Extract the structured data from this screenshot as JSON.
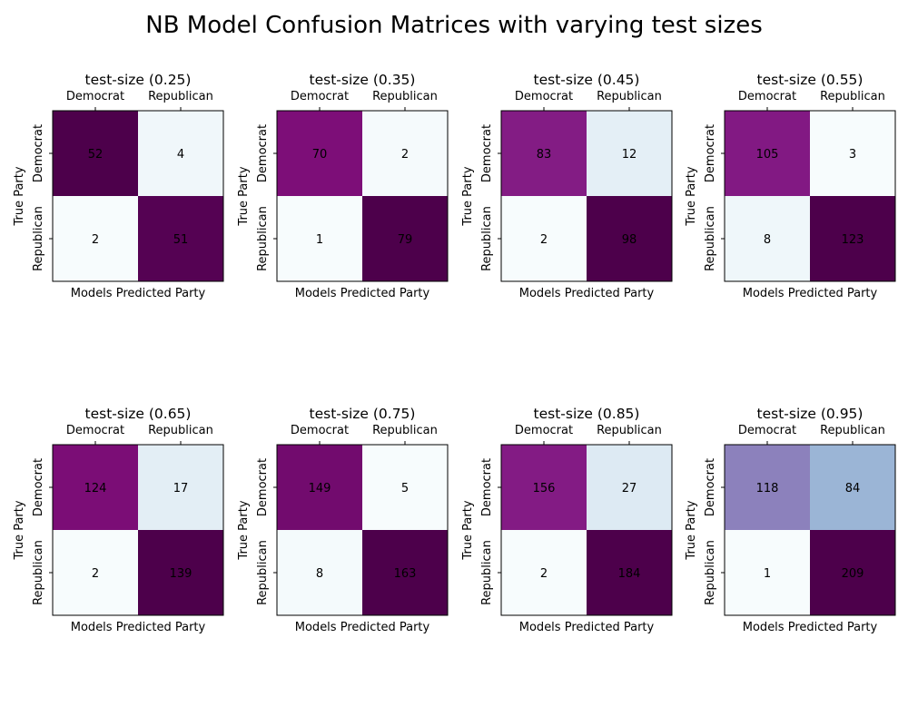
{
  "figure": {
    "title": "NB Model Confusion Matrices with varying test sizes"
  },
  "chart_data": [
    {
      "type": "heatmap",
      "title": "test-size (0.25)",
      "xlabel": "Models Predicted Party",
      "ylabel": "True Party",
      "x_categories": [
        "Democrat",
        "Republican"
      ],
      "y_categories": [
        "Democrat",
        "Republican"
      ],
      "values": [
        [
          52,
          4
        ],
        [
          2,
          51
        ]
      ],
      "colormap": "BuPu"
    },
    {
      "type": "heatmap",
      "title": "test-size (0.35)",
      "xlabel": "Models Predicted Party",
      "ylabel": "True Party",
      "x_categories": [
        "Democrat",
        "Republican"
      ],
      "y_categories": [
        "Democrat",
        "Republican"
      ],
      "values": [
        [
          70,
          2
        ],
        [
          1,
          79
        ]
      ],
      "colormap": "BuPu"
    },
    {
      "type": "heatmap",
      "title": "test-size (0.45)",
      "xlabel": "Models Predicted Party",
      "ylabel": "True Party",
      "x_categories": [
        "Democrat",
        "Republican"
      ],
      "y_categories": [
        "Democrat",
        "Republican"
      ],
      "values": [
        [
          83,
          12
        ],
        [
          2,
          98
        ]
      ],
      "colormap": "BuPu"
    },
    {
      "type": "heatmap",
      "title": "test-size (0.55)",
      "xlabel": "Models Predicted Party",
      "ylabel": "True Party",
      "x_categories": [
        "Democrat",
        "Republican"
      ],
      "y_categories": [
        "Democrat",
        "Republican"
      ],
      "values": [
        [
          105,
          3
        ],
        [
          8,
          123
        ]
      ],
      "colormap": "BuPu"
    },
    {
      "type": "heatmap",
      "title": "test-size (0.65)",
      "xlabel": "Models Predicted Party",
      "ylabel": "True Party",
      "x_categories": [
        "Democrat",
        "Republican"
      ],
      "y_categories": [
        "Democrat",
        "Republican"
      ],
      "values": [
        [
          124,
          17
        ],
        [
          2,
          139
        ]
      ],
      "colormap": "BuPu"
    },
    {
      "type": "heatmap",
      "title": "test-size (0.75)",
      "xlabel": "Models Predicted Party",
      "ylabel": "True Party",
      "x_categories": [
        "Democrat",
        "Republican"
      ],
      "y_categories": [
        "Democrat",
        "Republican"
      ],
      "values": [
        [
          149,
          5
        ],
        [
          8,
          163
        ]
      ],
      "colormap": "BuPu"
    },
    {
      "type": "heatmap",
      "title": "test-size (0.85)",
      "xlabel": "Models Predicted Party",
      "ylabel": "True Party",
      "x_categories": [
        "Democrat",
        "Republican"
      ],
      "y_categories": [
        "Democrat",
        "Republican"
      ],
      "values": [
        [
          156,
          27
        ],
        [
          2,
          184
        ]
      ],
      "colormap": "BuPu"
    },
    {
      "type": "heatmap",
      "title": "test-size (0.95)",
      "xlabel": "Models Predicted Party",
      "ylabel": "True Party",
      "x_categories": [
        "Democrat",
        "Republican"
      ],
      "y_categories": [
        "Democrat",
        "Republican"
      ],
      "values": [
        [
          118,
          84
        ],
        [
          1,
          209
        ]
      ],
      "colormap": "BuPu"
    }
  ]
}
